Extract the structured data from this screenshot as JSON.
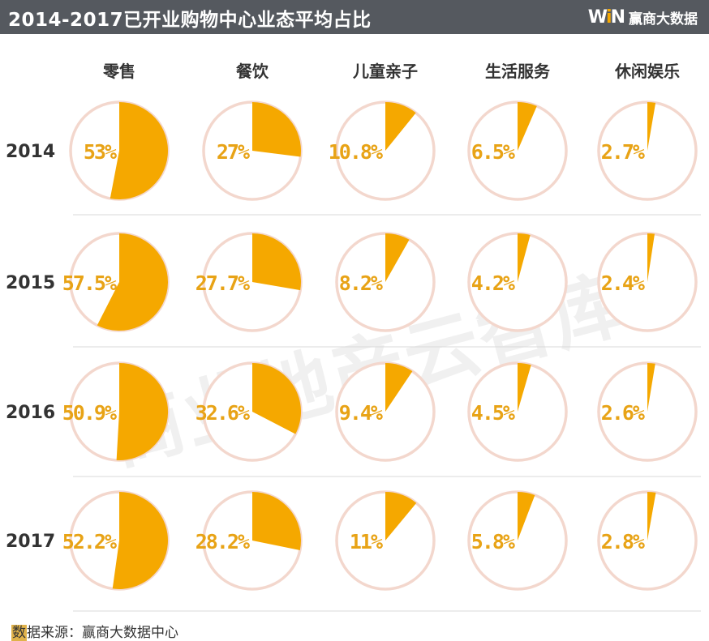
{
  "header": {
    "title": "2014-2017已开业购物中心业态平均占比",
    "brand_logo": "WiN",
    "brand_name": "赢商大数据"
  },
  "watermark": "商业地产云智库",
  "footer": {
    "label_first_char": "数",
    "label_rest": "据来源：",
    "source": "赢商大数据中心"
  },
  "colors": {
    "header_bg": "#55595f",
    "slice": "#f5a800",
    "ring": "#f3d7cd",
    "label": "#e8a316",
    "divider": "#d9d9d9"
  },
  "chart_data": {
    "type": "pie",
    "title": "2014-2017已开业购物中心业态平均占比",
    "categories": [
      "零售",
      "餐饮",
      "儿童亲子",
      "生活服务",
      "休闲娱乐"
    ],
    "series": [
      {
        "name": "2014",
        "values": [
          53,
          27,
          10.8,
          6.5,
          2.7
        ],
        "labels": [
          "53%",
          "27%",
          "10.8%",
          "6.5%",
          "2.7%"
        ]
      },
      {
        "name": "2015",
        "values": [
          57.5,
          27.7,
          8.2,
          4.2,
          2.4
        ],
        "labels": [
          "57.5%",
          "27.7%",
          "8.2%",
          "4.2%",
          "2.4%"
        ]
      },
      {
        "name": "2016",
        "values": [
          50.9,
          32.6,
          9.4,
          4.5,
          2.6
        ],
        "labels": [
          "50.9%",
          "32.6%",
          "9.4%",
          "4.5%",
          "2.6%"
        ]
      },
      {
        "name": "2017",
        "values": [
          52.2,
          28.2,
          11,
          5.8,
          2.8
        ],
        "labels": [
          "52.2%",
          "28.2%",
          "11%",
          "5.8%",
          "2.8%"
        ]
      }
    ]
  }
}
